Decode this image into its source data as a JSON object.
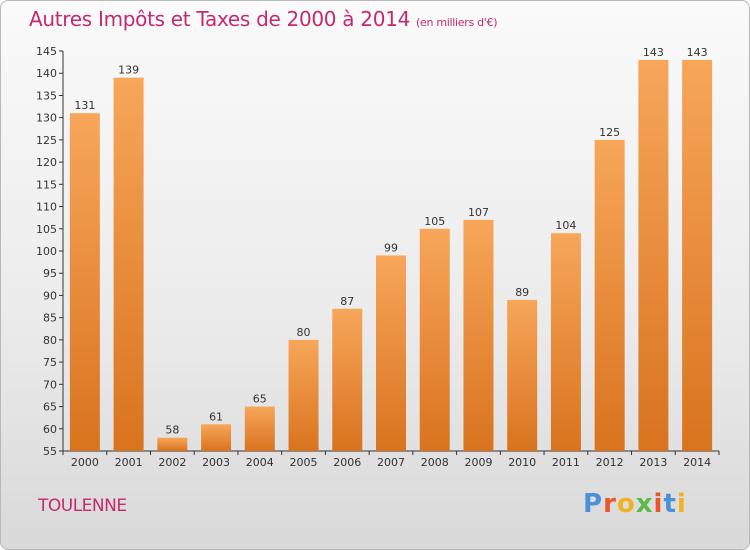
{
  "header": {
    "title": "Autres Impôts et Taxes de 2000 à 2014",
    "unit": "(en milliers d'€)"
  },
  "footer": {
    "commune": "TOULENNE",
    "brand": "Proxiti"
  },
  "colors": {
    "title": "#c42a6e",
    "bar_light": "#f7a65a",
    "bar_dark": "#d9731e"
  },
  "chart_data": {
    "type": "bar",
    "title": "Autres Impôts et Taxes de 2000 à 2014",
    "xlabel": "",
    "ylabel": "",
    "categories": [
      "2000",
      "2001",
      "2002",
      "2003",
      "2004",
      "2005",
      "2006",
      "2007",
      "2008",
      "2009",
      "2010",
      "2011",
      "2012",
      "2013",
      "2014"
    ],
    "values": [
      131,
      139,
      58,
      61,
      65,
      80,
      87,
      99,
      105,
      107,
      89,
      104,
      125,
      143,
      143
    ],
    "ylim": [
      55,
      145
    ],
    "yticks": [
      55,
      60,
      65,
      70,
      75,
      80,
      85,
      90,
      95,
      100,
      105,
      110,
      115,
      120,
      125,
      130,
      135,
      140,
      145
    ],
    "grid": false,
    "legend": "none"
  }
}
